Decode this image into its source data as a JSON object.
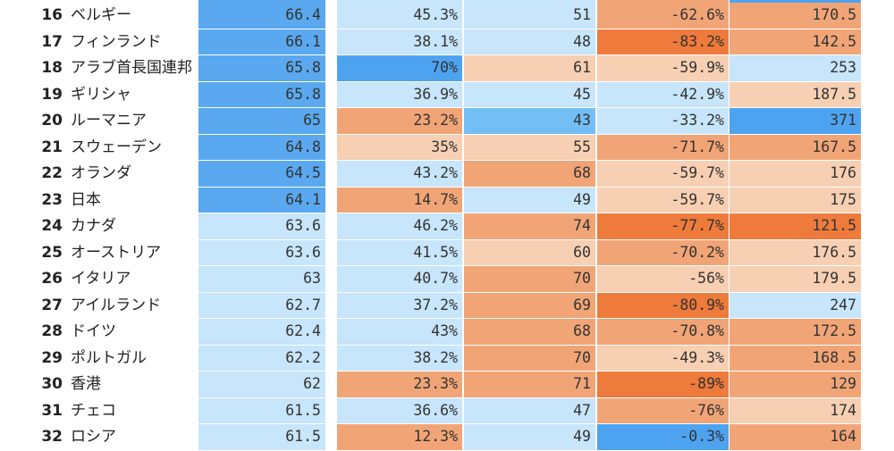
{
  "colors": {
    "blue_strong": "#5aa8ef",
    "blue_max": "#4ea3f1",
    "blue_light": "#c7e5fb",
    "blue_mid": "#73bff5",
    "peach": "#f7cfb3",
    "orange": "#f1a577",
    "orange_dark": "#ee7a3b"
  },
  "rows": [
    {
      "rank": "16",
      "name": "ベルギー",
      "cells": [
        {
          "v": "66.4",
          "c": "b-blue1"
        },
        {
          "v": "45.3%",
          "c": "b-lblue"
        },
        {
          "v": "51",
          "c": "b-lblue"
        },
        {
          "v": "-62.6%",
          "c": "b-orange"
        },
        {
          "v": "170.5",
          "c": "b-orange"
        }
      ]
    },
    {
      "rank": "17",
      "name": "フィンランド",
      "cells": [
        {
          "v": "66.1",
          "c": "b-blue1"
        },
        {
          "v": "38.1%",
          "c": "b-lblue"
        },
        {
          "v": "48",
          "c": "b-lblue"
        },
        {
          "v": "-83.2%",
          "c": "b-dorange"
        },
        {
          "v": "142.5",
          "c": "b-orange"
        }
      ]
    },
    {
      "rank": "18",
      "name": "アラブ首長国連邦",
      "cells": [
        {
          "v": "65.8",
          "c": "b-blue1"
        },
        {
          "v": "70%",
          "c": "b-blue2"
        },
        {
          "v": "61",
          "c": "b-peach"
        },
        {
          "v": "-59.9%",
          "c": "b-peach"
        },
        {
          "v": "253",
          "c": "b-lblue"
        }
      ]
    },
    {
      "rank": "19",
      "name": "ギリシャ",
      "cells": [
        {
          "v": "65.8",
          "c": "b-blue1"
        },
        {
          "v": "36.9%",
          "c": "b-lblue"
        },
        {
          "v": "45",
          "c": "b-lblue"
        },
        {
          "v": "-42.9%",
          "c": "b-lblue"
        },
        {
          "v": "187.5",
          "c": "b-peach"
        }
      ]
    },
    {
      "rank": "20",
      "name": "ルーマニア",
      "cells": [
        {
          "v": "65",
          "c": "b-blue1"
        },
        {
          "v": "23.2%",
          "c": "b-orange"
        },
        {
          "v": "43",
          "c": "b-mblue"
        },
        {
          "v": "-33.2%",
          "c": "b-lblue"
        },
        {
          "v": "371",
          "c": "b-blue2"
        }
      ]
    },
    {
      "rank": "21",
      "name": "スウェーデン",
      "cells": [
        {
          "v": "64.8",
          "c": "b-blue1"
        },
        {
          "v": "35%",
          "c": "b-peach"
        },
        {
          "v": "55",
          "c": "b-peach"
        },
        {
          "v": "-71.7%",
          "c": "b-orange"
        },
        {
          "v": "167.5",
          "c": "b-orange"
        }
      ]
    },
    {
      "rank": "22",
      "name": "オランダ",
      "cells": [
        {
          "v": "64.5",
          "c": "b-blue1"
        },
        {
          "v": "43.2%",
          "c": "b-lblue"
        },
        {
          "v": "68",
          "c": "b-orange"
        },
        {
          "v": "-59.7%",
          "c": "b-peach"
        },
        {
          "v": "176",
          "c": "b-peach"
        }
      ]
    },
    {
      "rank": "23",
      "name": "日本",
      "cells": [
        {
          "v": "64.1",
          "c": "b-blue1"
        },
        {
          "v": "14.7%",
          "c": "b-orange"
        },
        {
          "v": "49",
          "c": "b-lblue"
        },
        {
          "v": "-59.7%",
          "c": "b-peach"
        },
        {
          "v": "175",
          "c": "b-peach"
        }
      ]
    },
    {
      "rank": "24",
      "name": "カナダ",
      "cells": [
        {
          "v": "63.6",
          "c": "b-lblue"
        },
        {
          "v": "46.2%",
          "c": "b-lblue"
        },
        {
          "v": "74",
          "c": "b-orange"
        },
        {
          "v": "-77.7%",
          "c": "b-dorange"
        },
        {
          "v": "121.5",
          "c": "b-dorange"
        }
      ]
    },
    {
      "rank": "25",
      "name": "オーストリア",
      "cells": [
        {
          "v": "63.6",
          "c": "b-lblue"
        },
        {
          "v": "41.5%",
          "c": "b-lblue"
        },
        {
          "v": "60",
          "c": "b-peach"
        },
        {
          "v": "-70.2%",
          "c": "b-orange"
        },
        {
          "v": "176.5",
          "c": "b-peach"
        }
      ]
    },
    {
      "rank": "26",
      "name": "イタリア",
      "cells": [
        {
          "v": "63",
          "c": "b-lblue"
        },
        {
          "v": "40.7%",
          "c": "b-lblue"
        },
        {
          "v": "70",
          "c": "b-orange"
        },
        {
          "v": "-56%",
          "c": "b-peach"
        },
        {
          "v": "179.5",
          "c": "b-peach"
        }
      ]
    },
    {
      "rank": "27",
      "name": "アイルランド",
      "cells": [
        {
          "v": "62.7",
          "c": "b-lblue"
        },
        {
          "v": "37.2%",
          "c": "b-lblue"
        },
        {
          "v": "69",
          "c": "b-orange"
        },
        {
          "v": "-80.9%",
          "c": "b-dorange"
        },
        {
          "v": "247",
          "c": "b-lblue"
        }
      ]
    },
    {
      "rank": "28",
      "name": "ドイツ",
      "cells": [
        {
          "v": "62.4",
          "c": "b-lblue"
        },
        {
          "v": "43%",
          "c": "b-lblue"
        },
        {
          "v": "68",
          "c": "b-orange"
        },
        {
          "v": "-70.8%",
          "c": "b-orange"
        },
        {
          "v": "172.5",
          "c": "b-orange"
        }
      ]
    },
    {
      "rank": "29",
      "name": "ポルトガル",
      "cells": [
        {
          "v": "62.2",
          "c": "b-lblue"
        },
        {
          "v": "38.2%",
          "c": "b-lblue"
        },
        {
          "v": "70",
          "c": "b-orange"
        },
        {
          "v": "-49.3%",
          "c": "b-peach"
        },
        {
          "v": "168.5",
          "c": "b-orange"
        }
      ]
    },
    {
      "rank": "30",
      "name": "香港",
      "cells": [
        {
          "v": "62",
          "c": "b-lblue"
        },
        {
          "v": "23.3%",
          "c": "b-orange"
        },
        {
          "v": "71",
          "c": "b-orange"
        },
        {
          "v": "-89%",
          "c": "b-dorange"
        },
        {
          "v": "129",
          "c": "b-orange"
        }
      ]
    },
    {
      "rank": "31",
      "name": "チェコ",
      "cells": [
        {
          "v": "61.5",
          "c": "b-lblue"
        },
        {
          "v": "36.6%",
          "c": "b-lblue"
        },
        {
          "v": "47",
          "c": "b-lblue"
        },
        {
          "v": "-76%",
          "c": "b-orange"
        },
        {
          "v": "174",
          "c": "b-peach"
        }
      ]
    },
    {
      "rank": "32",
      "name": "ロシア",
      "cells": [
        {
          "v": "61.5",
          "c": "b-lblue"
        },
        {
          "v": "12.3%",
          "c": "b-orange"
        },
        {
          "v": "49",
          "c": "b-lblue"
        },
        {
          "v": "-0.3%",
          "c": "b-blue2"
        },
        {
          "v": "164",
          "c": "b-orange"
        }
      ]
    }
  ]
}
